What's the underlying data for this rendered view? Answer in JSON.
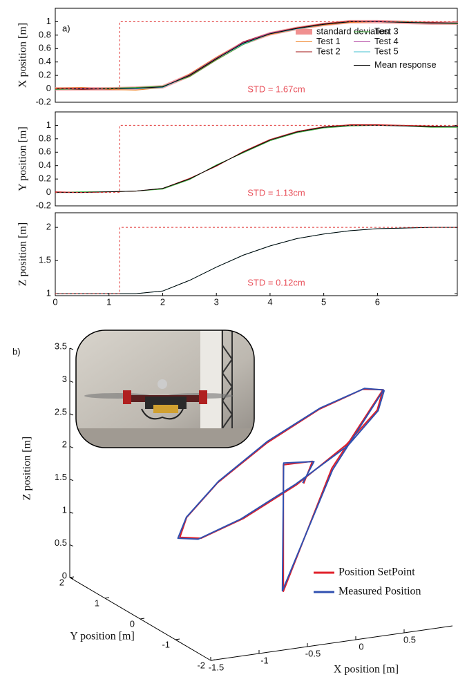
{
  "chart_data": [
    {
      "type": "line",
      "panel_label": "a)",
      "ylabel": "X position [m]",
      "annotation": "STD = 1.67cm",
      "annotation_color": "#e8505a",
      "xlim": [
        0,
        7.5
      ],
      "ylim": [
        -0.2,
        1.2
      ],
      "yticks": [
        -0.2,
        0,
        0.2,
        0.4,
        0.6,
        0.8,
        1
      ],
      "legend": "upper right",
      "x": [
        0,
        0.5,
        1,
        1.5,
        2,
        2.5,
        3,
        3.5,
        4,
        4.5,
        5,
        5.5,
        6,
        6.5,
        7,
        7.5
      ],
      "series": [
        {
          "name": "standard deviation",
          "color": "#f09090",
          "linewidth": 5,
          "values": [
            0,
            0,
            0,
            0.01,
            0.03,
            0.2,
            0.45,
            0.68,
            0.82,
            0.9,
            0.96,
            1.0,
            1.0,
            0.99,
            0.98,
            0.98
          ]
        },
        {
          "name": "Test 1",
          "color": "#f07f20",
          "values": [
            0.01,
            0.02,
            -0.01,
            -0.02,
            0.02,
            0.22,
            0.47,
            0.69,
            0.81,
            0.89,
            0.95,
            0.99,
            1.0,
            0.99,
            0.98,
            0.98
          ]
        },
        {
          "name": "Test 2",
          "color": "#a01010",
          "values": [
            0,
            -0.01,
            0,
            0.01,
            0.03,
            0.19,
            0.44,
            0.7,
            0.83,
            0.91,
            0.97,
            1.01,
            1.0,
            0.99,
            0.99,
            0.98
          ]
        },
        {
          "name": "Test 3",
          "color": "#40b040",
          "values": [
            -0.01,
            0,
            0.01,
            0.02,
            0.04,
            0.18,
            0.43,
            0.66,
            0.82,
            0.9,
            0.96,
            1.0,
            1.0,
            1.0,
            0.98,
            0.97
          ]
        },
        {
          "name": "Test 4",
          "color": "#b040a0",
          "values": [
            0,
            0.01,
            0,
            0.01,
            0.03,
            0.21,
            0.46,
            0.69,
            0.83,
            0.9,
            0.96,
            1.0,
            1.01,
            0.99,
            0.98,
            0.98
          ]
        },
        {
          "name": "Test 5",
          "color": "#40c0d0",
          "values": [
            0,
            0,
            0,
            0,
            0.02,
            0.2,
            0.45,
            0.67,
            0.82,
            0.89,
            0.96,
            1.0,
            1.0,
            0.99,
            0.98,
            0.98
          ]
        },
        {
          "name": "Mean response",
          "color": "#000000",
          "values": [
            0,
            0,
            0,
            0.01,
            0.03,
            0.2,
            0.45,
            0.68,
            0.82,
            0.9,
            0.96,
            1.0,
            1.0,
            0.99,
            0.98,
            0.98
          ]
        },
        {
          "color": "#e03030",
          "linestyle": "dashed",
          "x": [
            0,
            1.2,
            1.2,
            7.5
          ],
          "values": [
            0,
            0,
            1,
            1
          ]
        }
      ]
    },
    {
      "type": "line",
      "ylabel": "Y position [m]",
      "annotation": "STD = 1.13cm",
      "annotation_color": "#e8505a",
      "xlim": [
        0,
        7.5
      ],
      "ylim": [
        -0.2,
        1.2
      ],
      "yticks": [
        -0.2,
        0,
        0.2,
        0.4,
        0.6,
        0.8,
        1
      ],
      "x": [
        0,
        0.5,
        1,
        1.5,
        2,
        2.5,
        3,
        3.5,
        4,
        4.5,
        5,
        5.5,
        6,
        6.5,
        7,
        7.5
      ],
      "series": [
        {
          "color": "#40b040",
          "values": [
            0,
            0.01,
            0.01,
            0.02,
            0.05,
            0.19,
            0.41,
            0.59,
            0.77,
            0.89,
            0.96,
            0.99,
            1.0,
            0.99,
            0.97,
            0.97
          ]
        },
        {
          "color": "#c02020",
          "values": [
            0.01,
            0,
            0.01,
            0.02,
            0.06,
            0.21,
            0.39,
            0.61,
            0.79,
            0.91,
            0.98,
            1.01,
            1.01,
            1.0,
            0.99,
            0.98
          ]
        },
        {
          "color": "#000000",
          "values": [
            0,
            0,
            0.01,
            0.02,
            0.06,
            0.2,
            0.4,
            0.6,
            0.78,
            0.9,
            0.97,
            1.0,
            1.0,
            0.99,
            0.98,
            0.98
          ]
        },
        {
          "color": "#e03030",
          "linestyle": "dashed",
          "x": [
            0,
            1.2,
            1.2,
            7.5
          ],
          "values": [
            0,
            0,
            1,
            1
          ]
        }
      ]
    },
    {
      "type": "line",
      "ylabel": "Z position [m]",
      "annotation": "STD = 0.12cm",
      "annotation_color": "#e8505a",
      "xlim": [
        0,
        7.5
      ],
      "ylim": [
        0.97,
        2.22
      ],
      "yticks": [
        1,
        1.5,
        2
      ],
      "xticks": [
        0,
        1,
        2,
        3,
        4,
        5,
        6
      ],
      "x": [
        0,
        0.5,
        1,
        1.5,
        2,
        2.5,
        3,
        3.5,
        4,
        4.5,
        5,
        5.5,
        6,
        6.5,
        7,
        7.5
      ],
      "series": [
        {
          "color": "#40c0d0",
          "values": [
            1,
            1,
            1,
            1,
            1.04,
            1.2,
            1.4,
            1.58,
            1.72,
            1.83,
            1.9,
            1.95,
            1.98,
            1.99,
            2.0,
            2.0
          ]
        },
        {
          "color": "#000000",
          "values": [
            1,
            1,
            1,
            1,
            1.04,
            1.2,
            1.4,
            1.58,
            1.72,
            1.83,
            1.9,
            1.95,
            1.98,
            1.99,
            2.0,
            2.0
          ]
        },
        {
          "color": "#e03030",
          "linestyle": "dashed",
          "x": [
            0,
            1.2,
            1.2,
            7.5
          ],
          "values": [
            1,
            1,
            2,
            2
          ]
        }
      ]
    },
    {
      "type": "line3d",
      "panel_label": "b)",
      "xlabel": "X position [m]",
      "ylabel": "Y position [m]",
      "zlabel": "Z position [m]",
      "xlim": [
        -1.5,
        1
      ],
      "ylim": [
        -2,
        2
      ],
      "zlim": [
        0,
        3.5
      ],
      "xticks": [
        -1.5,
        -1,
        -0.5,
        0,
        0.5
      ],
      "yticks": [
        -2,
        -1,
        0,
        1,
        2
      ],
      "zticks": [
        0,
        0.5,
        1,
        1.5,
        2,
        2.5,
        3,
        3.5
      ],
      "legend": "lower right",
      "series": [
        {
          "name": "Position SetPoint",
          "color": "#e0202a",
          "x": [
            1.01,
            0.95,
            0.63,
            0.12,
            -0.43,
            -0.87,
            -1.09,
            -1.02,
            -0.7,
            -0.19,
            0.35,
            0.8,
            1.01,
            0.48,
            -0.02,
            -0.02,
            0.28,
            0.19
          ],
          "y": [
            0,
            0,
            0,
            0,
            0,
            0,
            0,
            0,
            0,
            0,
            0,
            0,
            0,
            0,
            0,
            0,
            0,
            0
          ],
          "z": [
            2.97,
            2.67,
            2.21,
            1.71,
            1.31,
            1.1,
            1.16,
            1.45,
            1.91,
            2.41,
            2.81,
            3.02,
            2.97,
            1.88,
            0.11,
            2.04,
            2.03,
            1.71
          ]
        },
        {
          "name": "Measured Position",
          "color": "#3050b0",
          "x": [
            1.03,
            0.96,
            0.64,
            0.11,
            -0.45,
            -0.89,
            -1.11,
            -1.03,
            -0.69,
            -0.18,
            0.37,
            0.82,
            1.02,
            0.49,
            -0.03,
            -0.01,
            0.3,
            0.18
          ],
          "y": [
            0.02,
            0,
            -0.02,
            0,
            0.02,
            0.03,
            0,
            -0.02,
            0,
            0.01,
            0.02,
            0,
            0.01,
            0,
            0,
            0.02,
            0.01,
            0
          ],
          "z": [
            2.95,
            2.66,
            2.2,
            1.72,
            1.3,
            1.08,
            1.15,
            1.46,
            1.93,
            2.43,
            2.82,
            3.03,
            2.96,
            1.86,
            0.12,
            2.06,
            2.02,
            1.72
          ]
        }
      ]
    }
  ]
}
